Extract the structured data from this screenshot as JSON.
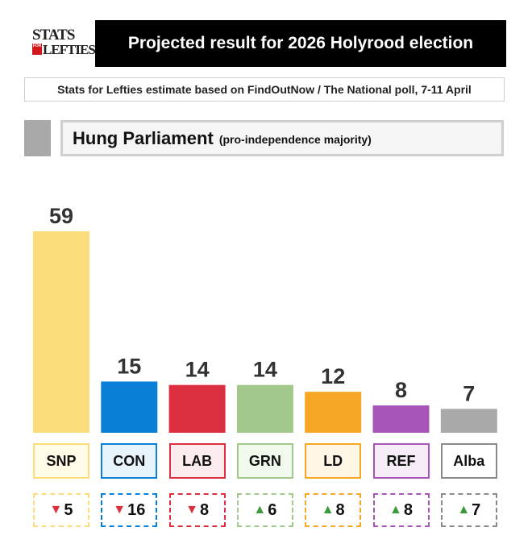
{
  "logo": {
    "line1": "STATS",
    "badge": "FOR",
    "line2": "LEFTIES"
  },
  "header": {
    "title": "Projected result for 2026 Holyrood election",
    "subtitle": "Stats for Lefties estimate based on FindOutNow / The National poll, 7-11 April"
  },
  "verdict": {
    "main": "Hung Parliament",
    "sub": "(pro-independence majority)"
  },
  "chart_data": {
    "type": "bar",
    "title": "Projected result for 2026 Holyrood election",
    "categories": [
      "SNP",
      "CON",
      "LAB",
      "GRN",
      "LD",
      "REF",
      "Alba"
    ],
    "values": [
      59,
      15,
      14,
      14,
      12,
      8,
      7
    ],
    "changes": [
      {
        "direction": "down",
        "value": "5"
      },
      {
        "direction": "down",
        "value": "16"
      },
      {
        "direction": "down",
        "value": "8"
      },
      {
        "direction": "up",
        "value": "6"
      },
      {
        "direction": "up",
        "value": "8"
      },
      {
        "direction": "up",
        "value": "8"
      },
      {
        "direction": "up",
        "value": "7"
      }
    ],
    "colors": [
      "#fcdc7b",
      "#0a7fd6",
      "#dc2f40",
      "#a2c98b",
      "#f5a623",
      "#a855b9",
      "#a9a9a9"
    ],
    "box_fills": [
      "#fffbe6",
      "#e8f4fc",
      "#fdecee",
      "#f1f8ec",
      "#fff6e5",
      "#f6ecf8",
      "#ffffff"
    ],
    "box_borders": [
      "#fcdc7b",
      "#0a7fd6",
      "#dc2f40",
      "#a2c98b",
      "#f5a623",
      "#a855b9",
      "#8a8a8a"
    ],
    "arrow_colors": {
      "up": "#3c9a3c",
      "down": "#dc2f40"
    },
    "arrow_glyphs": {
      "up": "▲",
      "down": "▼"
    },
    "ylim": [
      0,
      59
    ],
    "xlabel": "",
    "ylabel": "",
    "grid": false,
    "legend": "none"
  }
}
